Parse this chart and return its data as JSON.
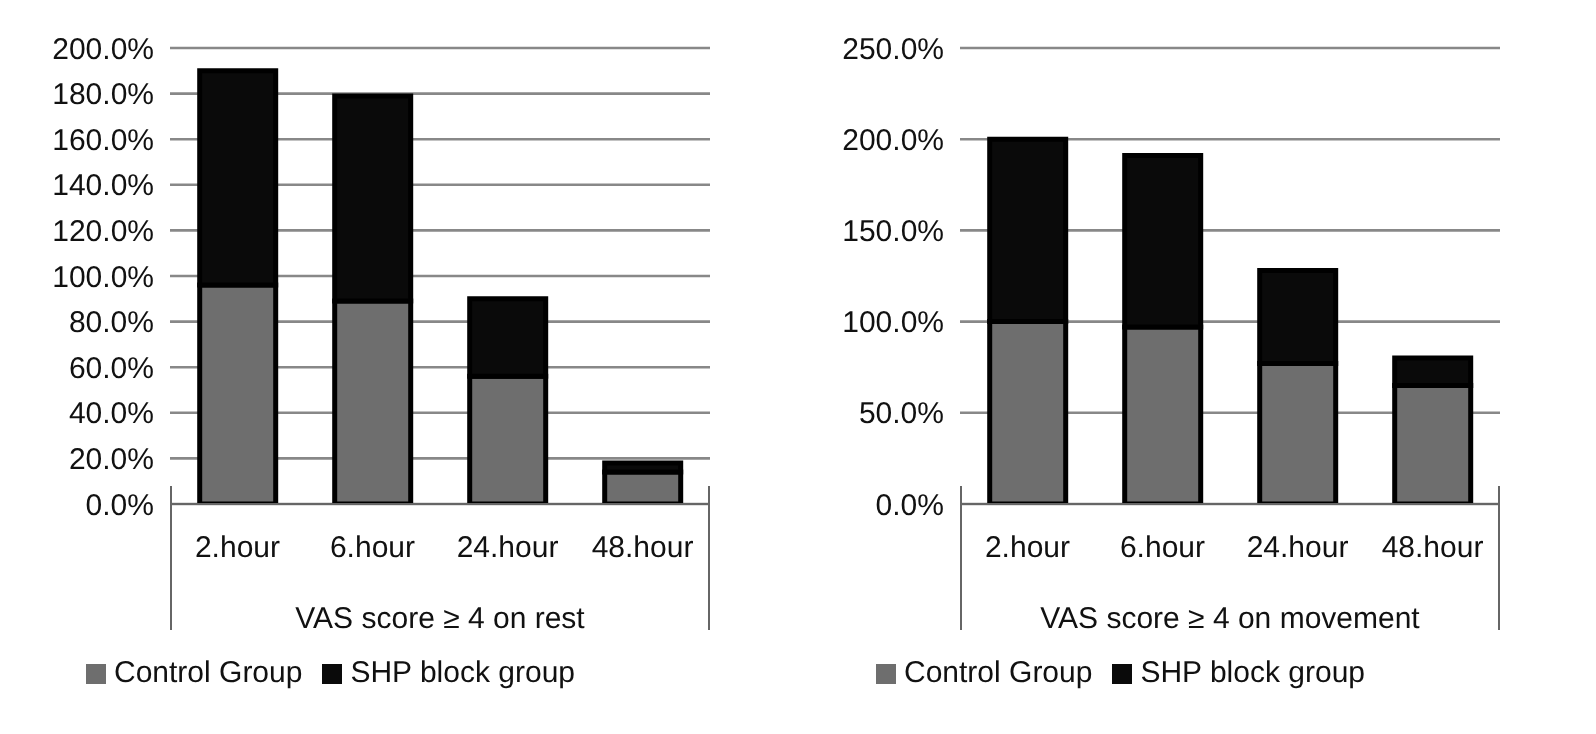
{
  "chart_data": [
    {
      "type": "bar",
      "stacked": true,
      "categories": [
        "2.hour",
        "6.hour",
        "24.hour",
        "48.hour"
      ],
      "xlabel": "VAS score ≥ 4 on rest",
      "ylim": [
        0,
        200
      ],
      "yticks": [
        {
          "value": 0,
          "label": "0.0%"
        },
        {
          "value": 20,
          "label": "20.0%"
        },
        {
          "value": 40,
          "label": "40.0%"
        },
        {
          "value": 60,
          "label": "60.0%"
        },
        {
          "value": 80,
          "label": "80.0%"
        },
        {
          "value": 100,
          "label": "100.0%"
        },
        {
          "value": 120,
          "label": "120.0%"
        },
        {
          "value": 140,
          "label": "140.0%"
        },
        {
          "value": 160,
          "label": "160.0%"
        },
        {
          "value": 180,
          "label": "180.0%"
        },
        {
          "value": 200,
          "label": "200.0%"
        }
      ],
      "grid": "y",
      "legend": "bottom left",
      "series": [
        {
          "name": "Control Group",
          "color": "#6e6e6e",
          "values": [
            96,
            89,
            56,
            14
          ]
        },
        {
          "name": "SHP block group",
          "color": "#0a0a0a",
          "values": [
            94,
            90,
            34,
            4
          ]
        }
      ]
    },
    {
      "type": "bar",
      "stacked": true,
      "categories": [
        "2.hour",
        "6.hour",
        "24.hour",
        "48.hour"
      ],
      "xlabel": "VAS score ≥ 4 on movement",
      "ylim": [
        0,
        250
      ],
      "yticks": [
        {
          "value": 0,
          "label": "0.0%"
        },
        {
          "value": 50,
          "label": "50.0%"
        },
        {
          "value": 100,
          "label": "100.0%"
        },
        {
          "value": 150,
          "label": "150.0%"
        },
        {
          "value": 200,
          "label": "200.0%"
        },
        {
          "value": 250,
          "label": "250.0%"
        }
      ],
      "grid": "y",
      "legend": "bottom left",
      "series": [
        {
          "name": "Control Group",
          "color": "#6e6e6e",
          "values": [
            100,
            97,
            77,
            65
          ]
        },
        {
          "name": "SHP block group",
          "color": "#0a0a0a",
          "values": [
            100,
            94,
            51,
            15
          ]
        }
      ]
    }
  ]
}
